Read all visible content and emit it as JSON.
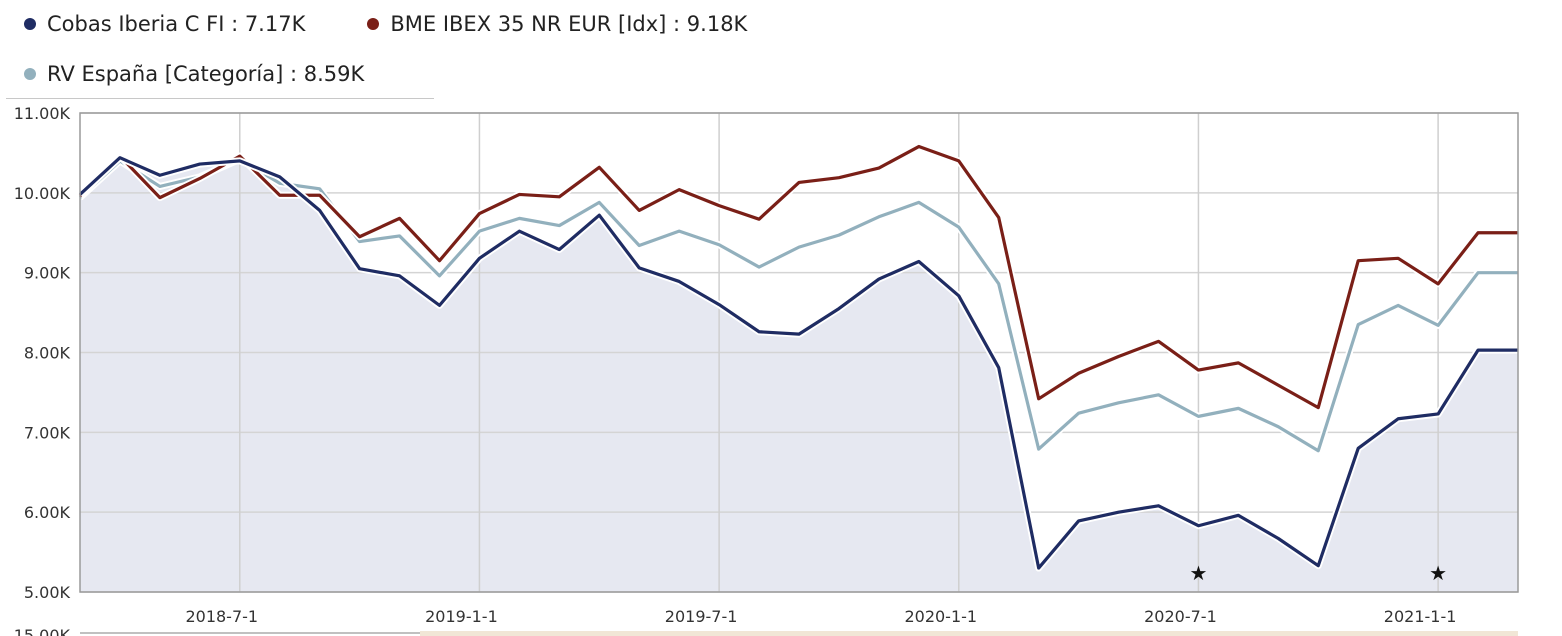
{
  "legend": [
    {
      "label": "Cobas Iberia C FI : 7.17K",
      "color": "#1f2c63"
    },
    {
      "label": "BME IBEX 35 NR EUR [Idx] : 9.18K",
      "color": "#7a1f17"
    },
    {
      "label": "RV España [Categoría] : 8.59K",
      "color": "#92b0bd"
    }
  ],
  "chart_data": {
    "type": "line",
    "x": [
      "2018-3",
      "2018-4",
      "2018-5",
      "2018-6",
      "2018-7",
      "2018-8",
      "2018-9",
      "2018-10",
      "2018-11",
      "2018-12",
      "2019-1",
      "2019-2",
      "2019-3",
      "2019-4",
      "2019-5",
      "2019-6",
      "2019-7",
      "2019-8",
      "2019-9",
      "2019-10",
      "2019-11",
      "2019-12",
      "2020-1",
      "2020-2",
      "2020-3",
      "2020-4",
      "2020-5",
      "2020-6",
      "2020-7",
      "2020-8",
      "2020-9",
      "2020-10",
      "2020-11",
      "2020-12",
      "2021-1",
      "2021-2",
      "2021-3"
    ],
    "series": [
      {
        "name": "Cobas Iberia C FI",
        "color": "#1f2c63",
        "values": [
          9980,
          10440,
          10220,
          10360,
          10400,
          10200,
          9780,
          9050,
          8960,
          8590,
          9180,
          9520,
          9290,
          9720,
          9060,
          8890,
          8600,
          8260,
          8230,
          8550,
          8920,
          9140,
          8710,
          7810,
          5300,
          5890,
          6000,
          6080,
          5830,
          5960,
          5670,
          5330,
          6800,
          7170,
          7230,
          8030,
          8030
        ]
      },
      {
        "name": "BME IBEX 35 NR EUR [Idx]",
        "color": "#7a1f17",
        "values": [
          9960,
          10460,
          9940,
          10180,
          10460,
          9970,
          9970,
          9450,
          9680,
          9150,
          9740,
          9980,
          9950,
          10320,
          9780,
          10040,
          9840,
          9670,
          10130,
          10190,
          10310,
          10580,
          10400,
          9690,
          7420,
          7740,
          7950,
          8140,
          7780,
          7870,
          7590,
          7310,
          9150,
          9180,
          8860,
          9500,
          9500
        ]
      },
      {
        "name": "RV España [Categoría]",
        "color": "#92b0bd",
        "values": [
          9940,
          10400,
          10080,
          10200,
          10420,
          10120,
          10050,
          9390,
          9460,
          8960,
          9520,
          9680,
          9590,
          9880,
          9340,
          9520,
          9350,
          9070,
          9320,
          9470,
          9700,
          9880,
          9570,
          8860,
          6790,
          7240,
          7370,
          7470,
          7200,
          7300,
          7070,
          6770,
          8350,
          8590,
          8340,
          9000,
          9000
        ]
      }
    ],
    "ylim": [
      5000,
      11000
    ],
    "y_ticks": [
      "11.00K",
      "10.00K",
      "9.00K",
      "8.00K",
      "7.00K",
      "6.00K",
      "5.00K"
    ],
    "y_tick_values": [
      11000,
      10000,
      9000,
      8000,
      7000,
      6000,
      5000
    ],
    "x_ticks": [
      "2018-7-1",
      "2019-1-1",
      "2019-7-1",
      "2020-1-1",
      "2020-7-1",
      "2021-1-1"
    ],
    "x_tick_positions": [
      4,
      10,
      16,
      22,
      28,
      34
    ],
    "cut_off_label": "15.00K",
    "markers": [
      {
        "symbol": "★",
        "x_index": 28
      },
      {
        "symbol": "★",
        "x_index": 34
      }
    ],
    "area_fill_series": 0,
    "area_fill_color": "#e6e8f1",
    "grid": true,
    "legend_position": "top-left"
  }
}
